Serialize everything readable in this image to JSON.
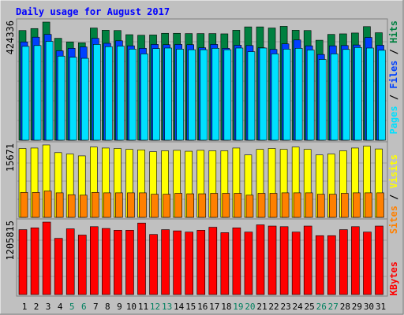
{
  "chart_data": [
    {
      "type": "bar",
      "title": "Daily usage for August 2017",
      "categories": [
        "1",
        "2",
        "3",
        "4",
        "5",
        "6",
        "7",
        "8",
        "9",
        "10",
        "11",
        "12",
        "13",
        "14",
        "15",
        "16",
        "17",
        "18",
        "19",
        "20",
        "21",
        "22",
        "23",
        "24",
        "25",
        "26",
        "27",
        "28",
        "29",
        "30",
        "31"
      ],
      "weekend_categories": [
        "5",
        "6",
        "12",
        "13",
        "19",
        "20",
        "26",
        "27"
      ],
      "ymax_label": "424336",
      "ylim": [
        0,
        424336
      ],
      "series": [
        {
          "name": "Hits",
          "color": "#008040",
          "values": [
            394000,
            401000,
            424336,
            366000,
            353000,
            350000,
            403000,
            395000,
            394000,
            379000,
            377000,
            378000,
            384000,
            384000,
            383000,
            383000,
            383000,
            382000,
            395000,
            407000,
            407000,
            403000,
            409000,
            395000,
            394000,
            359000,
            380000,
            382000,
            385000,
            408000,
            386000
          ]
        },
        {
          "name": "Files",
          "color": "#0040ff",
          "values": [
            353000,
            370000,
            380000,
            321000,
            330000,
            335000,
            366000,
            348000,
            357000,
            339000,
            330000,
            344000,
            343000,
            344000,
            343000,
            332000,
            344000,
            330000,
            341000,
            340000,
            332000,
            326000,
            346000,
            360000,
            339000,
            308000,
            339000,
            340000,
            342000,
            369000,
            341000
          ]
        },
        {
          "name": "Pages",
          "color": "#00e0ff",
          "values": [
            337000,
            340000,
            355000,
            302000,
            298000,
            294000,
            344000,
            336000,
            338000,
            327000,
            310000,
            329000,
            331000,
            327000,
            325000,
            325000,
            330000,
            325000,
            331000,
            318000,
            331000,
            310000,
            327000,
            330000,
            324000,
            290000,
            310000,
            326000,
            333000,
            331000,
            323000
          ]
        }
      ],
      "legend": "right-vertical"
    },
    {
      "type": "bar",
      "categories": [
        "1",
        "2",
        "3",
        "4",
        "5",
        "6",
        "7",
        "8",
        "9",
        "10",
        "11",
        "12",
        "13",
        "14",
        "15",
        "16",
        "17",
        "18",
        "19",
        "20",
        "21",
        "22",
        "23",
        "24",
        "25",
        "26",
        "27",
        "28",
        "29",
        "30",
        "31"
      ],
      "ymax_label": "15671",
      "ylim": [
        0,
        15671
      ],
      "series": [
        {
          "name": "Visits",
          "color": "#ffff00",
          "values": [
            14900,
            15000,
            15671,
            14000,
            13700,
            13300,
            15200,
            15000,
            14900,
            14700,
            14600,
            14200,
            14400,
            14500,
            14300,
            14500,
            14400,
            14400,
            15000,
            13500,
            14700,
            14900,
            14700,
            15200,
            14700,
            13500,
            13700,
            14400,
            15000,
            15400,
            14800
          ]
        },
        {
          "name": "Sites",
          "color": "#ff8000",
          "values": [
            5400,
            5400,
            5700,
            5300,
            4900,
            4800,
            5400,
            5300,
            5300,
            5300,
            5300,
            5000,
            5000,
            5200,
            5100,
            5100,
            5200,
            5200,
            5200,
            4800,
            5200,
            5200,
            5300,
            5300,
            5300,
            5000,
            5000,
            5200,
            5300,
            5300,
            5300
          ]
        }
      ],
      "legend": "right-vertical"
    },
    {
      "type": "bar",
      "categories": [
        "1",
        "2",
        "3",
        "4",
        "5",
        "6",
        "7",
        "8",
        "9",
        "10",
        "11",
        "12",
        "13",
        "14",
        "15",
        "16",
        "17",
        "18",
        "19",
        "20",
        "21",
        "22",
        "23",
        "24",
        "25",
        "26",
        "27",
        "28",
        "29",
        "30",
        "31"
      ],
      "ymax_label": "1205815",
      "ylim": [
        0,
        1205815
      ],
      "series": [
        {
          "name": "KBytes",
          "color": "#ff0000",
          "values": [
            1080000,
            1110000,
            1205815,
            935000,
            1094000,
            990000,
            1130000,
            1100000,
            1070000,
            1070000,
            1190000,
            1000000,
            1080000,
            1060000,
            1040000,
            1070000,
            1120000,
            1030000,
            1110000,
            1040000,
            1160000,
            1140000,
            1130000,
            1040000,
            1140000,
            980000,
            980000,
            1080000,
            1130000,
            1040000,
            1140000
          ]
        }
      ],
      "legend": "right-vertical"
    }
  ]
}
